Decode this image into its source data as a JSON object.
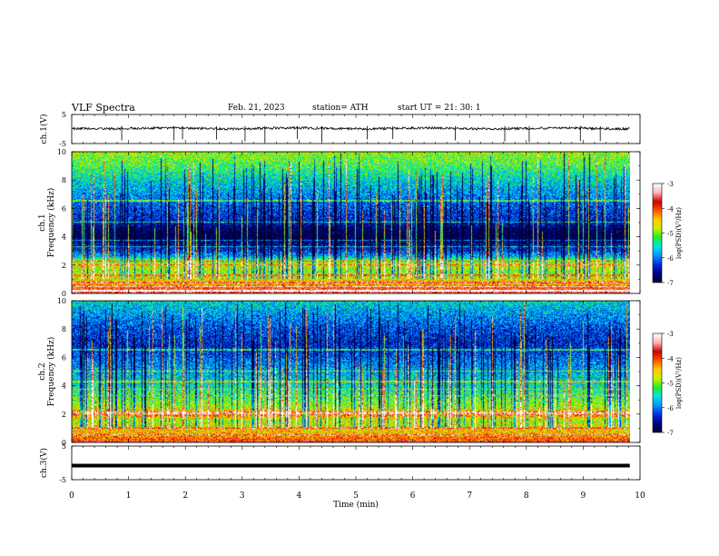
{
  "header": {
    "title": "VLF  Spectra",
    "date": "Feb. 21, 2023",
    "station": "station= ATH",
    "start_ut": "start  UT  =   21: 30: 1"
  },
  "colors": {
    "colormap": [
      "#000033",
      "#00008a",
      "#0030e0",
      "#0099ff",
      "#00e5e5",
      "#22ee22",
      "#ccee00",
      "#ffcc00",
      "#ff5500",
      "#cc0000",
      "#ffb0b0",
      "#ffffff"
    ],
    "trace": "#000000",
    "ch3_line": "#000000"
  },
  "chart_data": [
    {
      "type": "line",
      "name": "ch1-waveform",
      "ylabel": "ch.1(V)",
      "ylim": [
        -5,
        5
      ],
      "yticks": [
        "5",
        "-5"
      ],
      "x_range_min": [
        0,
        9.82
      ],
      "baseline_value": 0.2,
      "noise_amplitude": 0.4,
      "spike_times_min": [
        0.88,
        1.8,
        1.95,
        2.55,
        3.05,
        3.4,
        3.97,
        4.4,
        5.2,
        5.65,
        6.75,
        7.62,
        8.05,
        8.95,
        9.3
      ]
    },
    {
      "type": "heatmap",
      "name": "ch1-spectrogram",
      "ylabel_lines": [
        "ch.1",
        "Frequency  (kHz)"
      ],
      "ylim": [
        0,
        10
      ],
      "yticks": [
        "0",
        "2",
        "4",
        "6",
        "8",
        "10"
      ],
      "x_range_min": [
        0,
        9.82
      ],
      "colorbar": {
        "label": "log(PSD)(V²/Hz)",
        "range": [
          -7,
          -3
        ],
        "ticks": [
          "-3",
          "-4",
          "-5",
          "-6",
          "-7"
        ]
      },
      "band_profile": [
        {
          "f": 0.0,
          "level": -3.6
        },
        {
          "f": 0.3,
          "level": -3.8
        },
        {
          "f": 0.6,
          "level": -4.4
        },
        {
          "f": 1.0,
          "level": -4.6
        },
        {
          "f": 1.5,
          "level": -5.0
        },
        {
          "f": 2.0,
          "level": -4.6
        },
        {
          "f": 2.3,
          "level": -5.0
        },
        {
          "f": 2.6,
          "level": -5.8
        },
        {
          "f": 3.0,
          "level": -6.3
        },
        {
          "f": 3.5,
          "level": -6.6
        },
        {
          "f": 4.0,
          "level": -7.0
        },
        {
          "f": 4.6,
          "level": -6.8
        },
        {
          "f": 5.0,
          "level": -6.4
        },
        {
          "f": 6.0,
          "level": -6.2
        },
        {
          "f": 7.0,
          "level": -5.9
        },
        {
          "f": 8.0,
          "level": -5.6
        },
        {
          "f": 9.0,
          "level": -5.2
        },
        {
          "f": 10.0,
          "level": -4.9
        }
      ],
      "tone_lines_khz": [
        0.15,
        0.45,
        0.75,
        1.25,
        2.0,
        2.25,
        3.3,
        3.75,
        5.05,
        6.55
      ]
    },
    {
      "type": "heatmap",
      "name": "ch2-spectrogram",
      "ylabel_lines": [
        "ch.2",
        "Frequency  (kHz)"
      ],
      "ylim": [
        0,
        10
      ],
      "yticks": [
        "0",
        "2",
        "4",
        "6",
        "8",
        "10"
      ],
      "x_range_min": [
        0,
        9.82
      ],
      "colorbar": {
        "label": "log(PSD)(V²/Hz)",
        "range": [
          -7,
          -3
        ],
        "ticks": [
          "-3",
          "-4",
          "-5",
          "-6",
          "-7"
        ]
      },
      "band_profile": [
        {
          "f": 0.0,
          "level": -3.8
        },
        {
          "f": 0.5,
          "level": -4.4
        },
        {
          "f": 1.0,
          "level": -4.6
        },
        {
          "f": 1.5,
          "level": -4.9
        },
        {
          "f": 2.0,
          "level": -4.0
        },
        {
          "f": 2.4,
          "level": -4.8
        },
        {
          "f": 3.0,
          "level": -5.1
        },
        {
          "f": 4.0,
          "level": -5.5
        },
        {
          "f": 5.0,
          "level": -5.8
        },
        {
          "f": 6.0,
          "level": -6.1
        },
        {
          "f": 7.0,
          "level": -6.4
        },
        {
          "f": 8.0,
          "level": -6.2
        },
        {
          "f": 9.0,
          "level": -5.9
        },
        {
          "f": 10.0,
          "level": -5.6
        }
      ],
      "tone_lines_khz": [
        0.5,
        1.0,
        2.0,
        2.1,
        3.3,
        3.75,
        4.3,
        5.05,
        6.55
      ]
    },
    {
      "type": "line",
      "name": "ch3-waveform",
      "ylabel": "ch.3(V)",
      "ylim": [
        -5,
        5
      ],
      "yticks": [
        "5",
        "-5"
      ],
      "x_range_min": [
        0,
        9.82
      ],
      "baseline_value": -0.8
    }
  ],
  "xaxis": {
    "label": "Time  (min)",
    "range": [
      0,
      10
    ],
    "ticks": [
      "0",
      "1",
      "2",
      "3",
      "4",
      "5",
      "6",
      "7",
      "8",
      "9",
      "10"
    ]
  }
}
